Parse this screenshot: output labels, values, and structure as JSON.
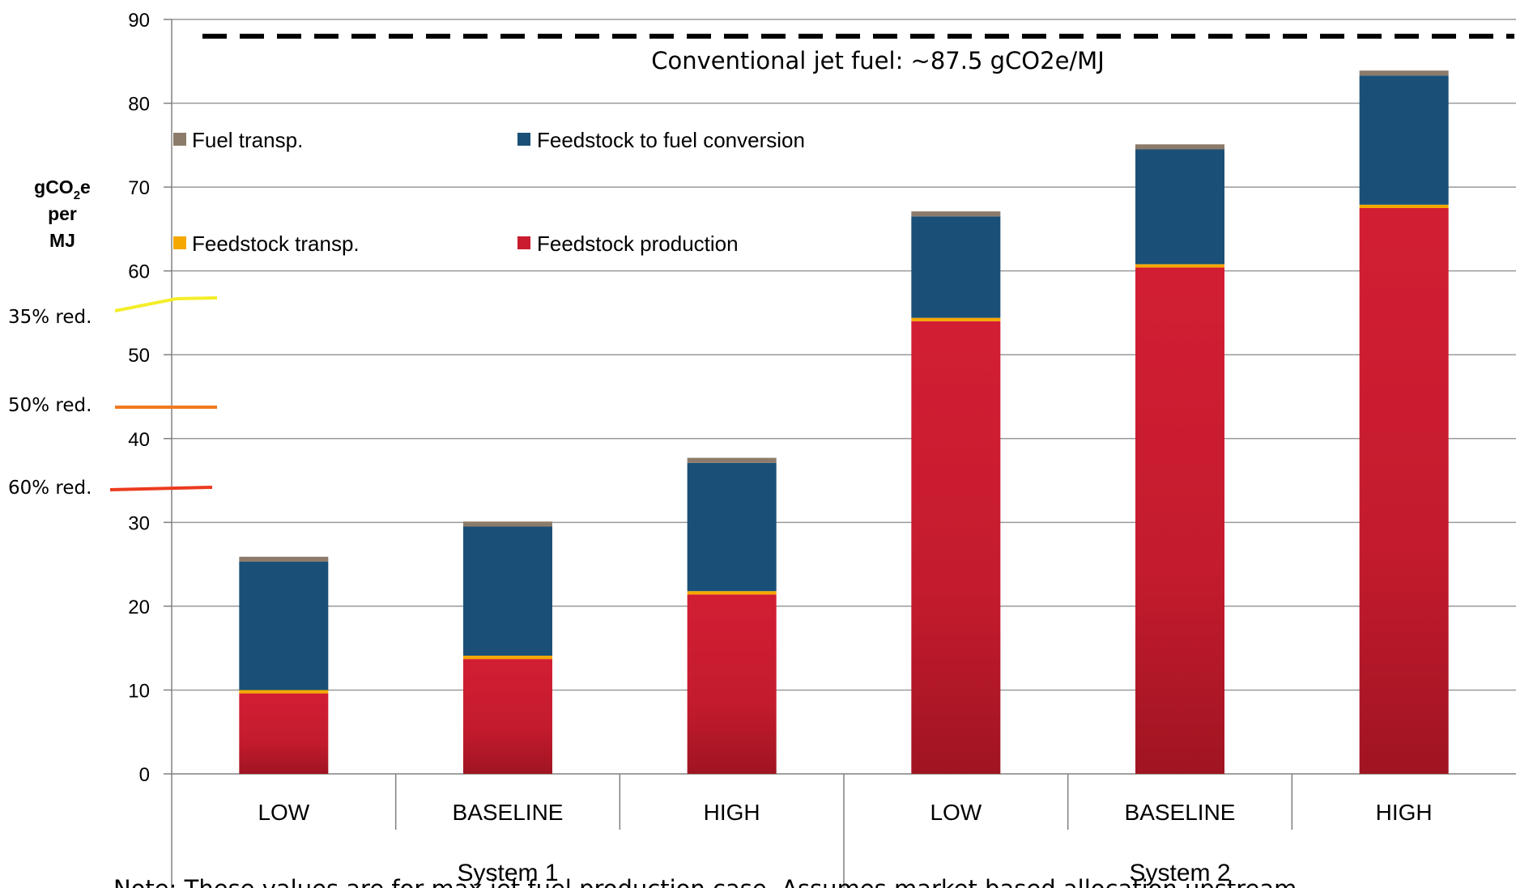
{
  "chart_data": {
    "type": "bar",
    "stacked": true,
    "categories": [
      "LOW",
      "BASELINE",
      "HIGH",
      "LOW",
      "BASELINE",
      "HIGH"
    ],
    "groups": [
      {
        "name": "System 1",
        "categories": [
          "LOW",
          "BASELINE",
          "HIGH"
        ]
      },
      {
        "name": "System 2",
        "categories": [
          "LOW",
          "BASELINE",
          "HIGH"
        ]
      }
    ],
    "series": [
      {
        "name": "Feedstock production",
        "color": "#c91c2f",
        "values": [
          9.6,
          13.7,
          21.4,
          54.0,
          60.4,
          67.5
        ]
      },
      {
        "name": "Feedstock transp.",
        "color": "#f5a800",
        "values": [
          0.4,
          0.4,
          0.4,
          0.4,
          0.4,
          0.4
        ]
      },
      {
        "name": "Feedstock to fuel conversion",
        "color": "#1a5077",
        "values": [
          15.3,
          15.4,
          15.3,
          12.1,
          13.7,
          15.4
        ]
      },
      {
        "name": "Fuel transp.",
        "color": "#8c7b6b",
        "values": [
          0.6,
          0.6,
          0.6,
          0.6,
          0.6,
          0.6
        ]
      }
    ],
    "legend_order": [
      "Fuel transp.",
      "Feedstock to fuel conversion",
      "Feedstock transp.",
      "Feedstock production"
    ],
    "yticks": [
      "0",
      "10",
      "20",
      "30",
      "40",
      "50",
      "60",
      "70",
      "80",
      "90"
    ],
    "ylim": [
      0,
      90
    ],
    "ylabel": {
      "line1": "gCO",
      "sub": "2",
      "line1_end": "e",
      "line2": "per",
      "line3": "MJ"
    },
    "grid": true,
    "reference_line": {
      "value": 88,
      "label": "Conventional jet fuel: ~87.5 gCO2e/MJ"
    },
    "reduction_markers": [
      {
        "label": "35% red.",
        "value": 56.9,
        "color": "#f4ee2a"
      },
      {
        "label": "50% red.",
        "value": 43.7,
        "color": "#f07a22"
      },
      {
        "label": "60% red.",
        "value": 35.0,
        "color": "#ec3a1d"
      }
    ],
    "note": "Note: These values are for max jet fuel production case. Assumes market based allocation upstream."
  }
}
